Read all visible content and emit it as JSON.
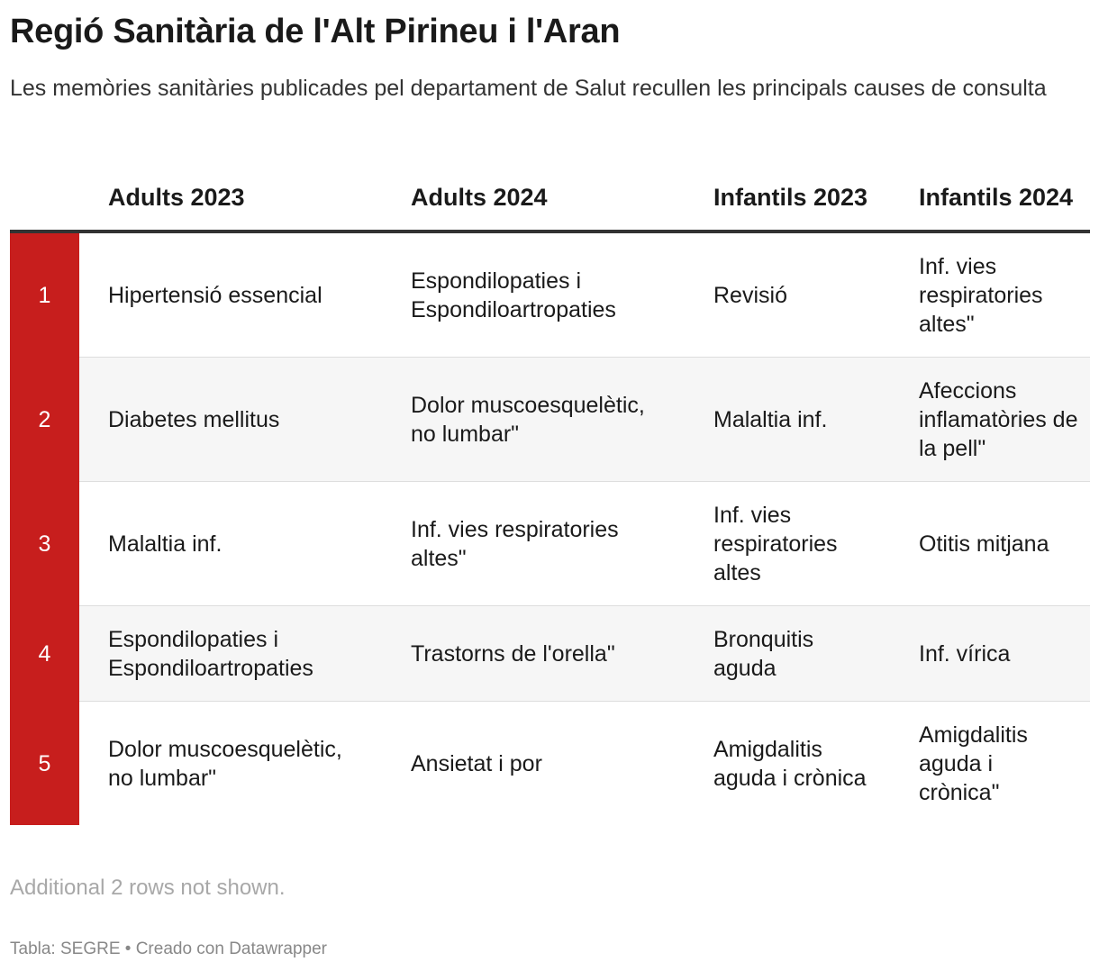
{
  "title": "Regió Sanitària de l'Alt Pirineu i l'Aran",
  "subtitle": "Les memòries sanitàries publicades pel departament de Salut recullen les principals causes de consulta",
  "chart_data": {
    "type": "table",
    "columns": [
      "",
      "Adults 2023",
      "Adults 2024",
      "Infantils 2023",
      "Infantils 2024"
    ],
    "rows": [
      [
        "1",
        "Hipertensió essencial",
        "Espondilopaties i Espondiloartropaties",
        "Revisió",
        "Inf. vies respiratories altes\""
      ],
      [
        "2",
        "Diabetes mellitus",
        "Dolor muscoesquelètic, no lumbar\"",
        "Malaltia inf.",
        "Afeccions inflamatòries de la pell\""
      ],
      [
        "3",
        "Malaltia inf.",
        "Inf. vies respiratories altes\"",
        "Inf. vies respiratories altes",
        "Otitis mitjana"
      ],
      [
        "4",
        "Espondilopaties i Espondiloartropaties",
        "Trastorns de l'orella\"",
        "Bronquitis aguda",
        "Inf. vírica"
      ],
      [
        "5",
        "Dolor muscoesquelètic, no lumbar\"",
        "Ansietat i por",
        "Amigdalitis aguda i crònica",
        "Amigdalitis aguda i crònica\""
      ]
    ],
    "note": "Additional 2 rows not shown."
  },
  "footer": "Tabla: SEGRE • Creado con Datawrapper",
  "colors": {
    "rank_bg": "#c71e1d",
    "stripe": "#f6f6f6",
    "header_rule": "#333333"
  }
}
